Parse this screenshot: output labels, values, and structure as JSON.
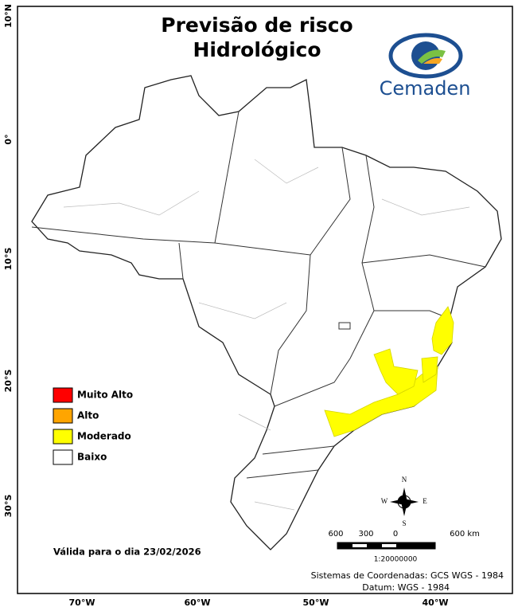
{
  "title_lines": [
    "Previsão de risco",
    "Hidrológico"
  ],
  "logo": {
    "name": "Cemaden"
  },
  "latitude_labels": [
    "10°N",
    "0°",
    "10°S",
    "20°S",
    "30°S"
  ],
  "longitude_labels": [
    "70°W",
    "60°W",
    "50°W",
    "40°W"
  ],
  "legend": [
    {
      "label": "Muito Alto",
      "color": "#ff0000"
    },
    {
      "label": "Alto",
      "color": "#ffa500"
    },
    {
      "label": "Moderado",
      "color": "#ffff00"
    },
    {
      "label": "Baixo",
      "color": "#ffffff"
    }
  ],
  "validity": "Válida para o dia 23/02/2026",
  "compass": [
    "N",
    "S",
    "W",
    "E"
  ],
  "scale_bar": {
    "labels": [
      "600",
      "300",
      "0",
      "600 km"
    ],
    "ratio": "1:20000000"
  },
  "footer": [
    "Sistemas de Coordenadas: GCS WGS - 1984",
    "Datum: WGS - 1984"
  ]
}
